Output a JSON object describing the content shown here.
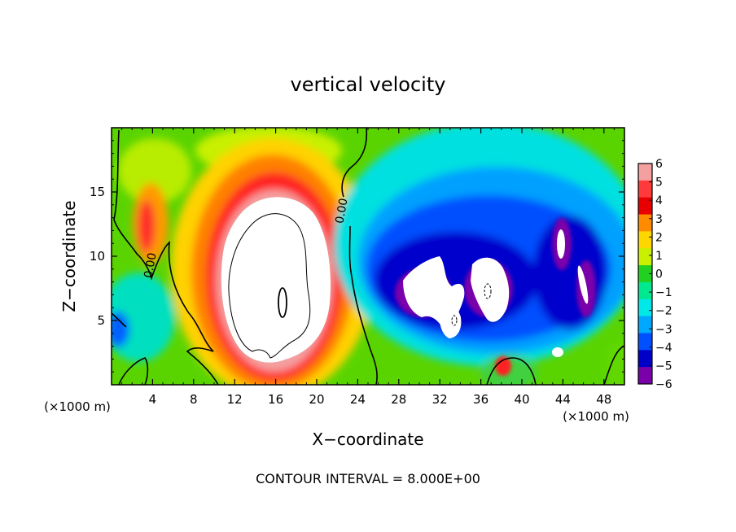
{
  "chart_data": {
    "type": "heatmap",
    "title": "vertical velocity",
    "xlabel": "X−coordinate",
    "ylabel": "Z−coordinate",
    "x_unit_left": "(×1000 m)",
    "x_unit_right": "(×1000 m)",
    "footer": "CONTOUR INTERVAL = 8.000E+00",
    "xlim": [
      0,
      50
    ],
    "ylim": [
      0,
      20
    ],
    "x_ticks": [
      4,
      8,
      12,
      16,
      20,
      24,
      28,
      32,
      36,
      40,
      44,
      48
    ],
    "y_ticks": [
      5,
      10,
      15
    ],
    "colorbar": {
      "levels": [
        6,
        5,
        4,
        3,
        2,
        1,
        0,
        -1,
        -2,
        -3,
        -4,
        -5,
        -6
      ],
      "labels": [
        "6",
        "5",
        "4",
        "3",
        "2",
        "1",
        "0",
        "−1",
        "−2",
        "−3",
        "−4",
        "−5",
        "−6"
      ],
      "colors": [
        "#f4a0a0",
        "#ff3a3a",
        "#e80000",
        "#ff8c00",
        "#ffd700",
        "#c8f000",
        "#22d022",
        "#00e890",
        "#00e8e8",
        "#00a8ff",
        "#0050ff",
        "#0000c8",
        "#7a00aa"
      ]
    },
    "contour_labels": [
      "0.00",
      "0.00"
    ],
    "background_color": "#5ad400",
    "saturated_color": "#ffffff"
  }
}
